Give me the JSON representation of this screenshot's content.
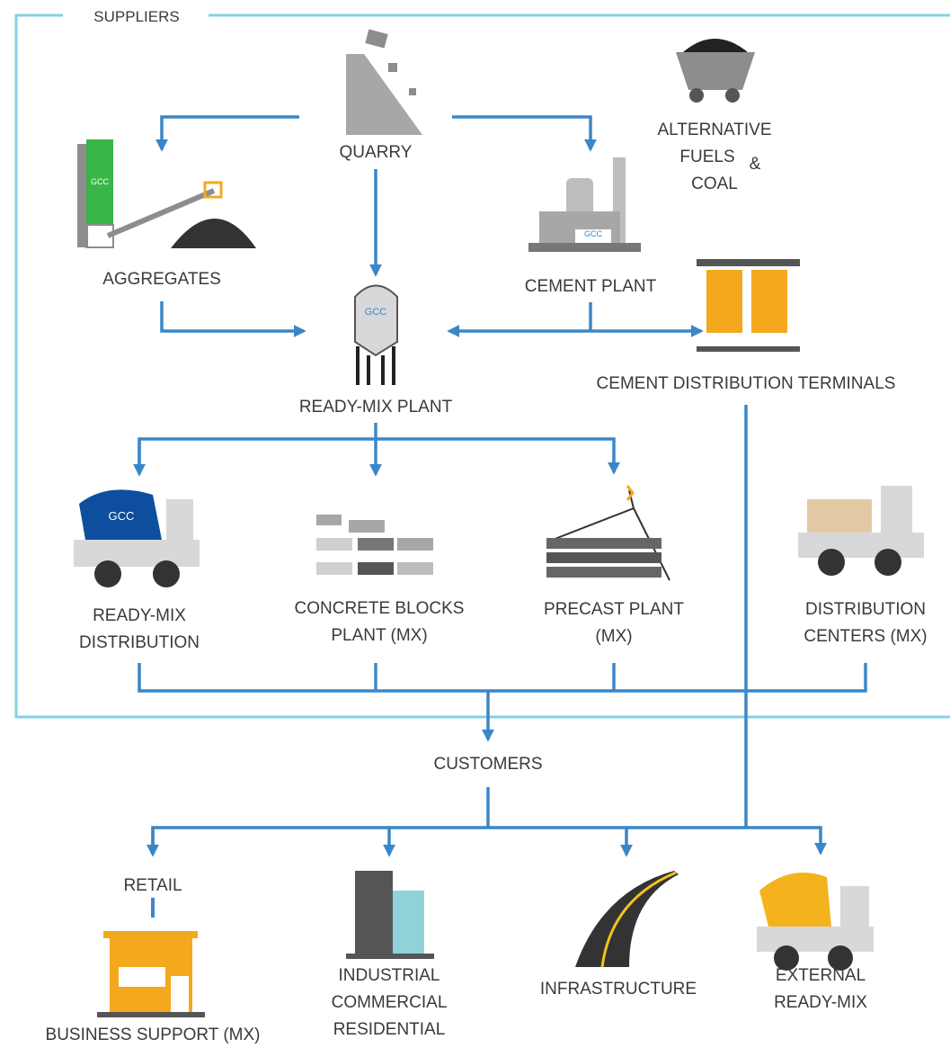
{
  "frame_label": "SUPPLIERS",
  "brand": "GCC",
  "nodes": [
    {
      "lines": [
        "QUARRY"
      ]
    },
    {
      "lines": [
        "ALTERNATIVE",
        "FUELS",
        "&",
        "COAL"
      ]
    },
    {
      "lines": [
        "AGGREGATES"
      ]
    },
    {
      "lines": [
        "CEMENT PLANT"
      ]
    },
    {
      "lines": [
        "READY-MIX PLANT"
      ]
    },
    {
      "lines": [
        "CEMENT DISTRIBUTION TERMINALS"
      ]
    },
    {
      "lines": [
        "READY-MIX",
        "DISTRIBUTION"
      ]
    },
    {
      "lines": [
        "CONCRETE BLOCKS",
        "PLANT (MX)"
      ]
    },
    {
      "lines": [
        "PRECAST PLANT",
        "(MX)"
      ]
    },
    {
      "lines": [
        "DISTRIBUTION",
        "CENTERS (MX)"
      ]
    },
    {
      "lines": [
        "CUSTOMERS"
      ]
    },
    {
      "lines": [
        "RETAIL"
      ]
    },
    {
      "lines": [
        "BUSINESS SUPPORT (MX)"
      ]
    },
    {
      "lines": [
        "INDUSTRIAL",
        "COMMERCIAL",
        "RESIDENTIAL"
      ]
    },
    {
      "lines": [
        "INFRASTRUCTURE"
      ]
    },
    {
      "lines": [
        "EXTERNAL",
        "READY-MIX"
      ]
    }
  ]
}
